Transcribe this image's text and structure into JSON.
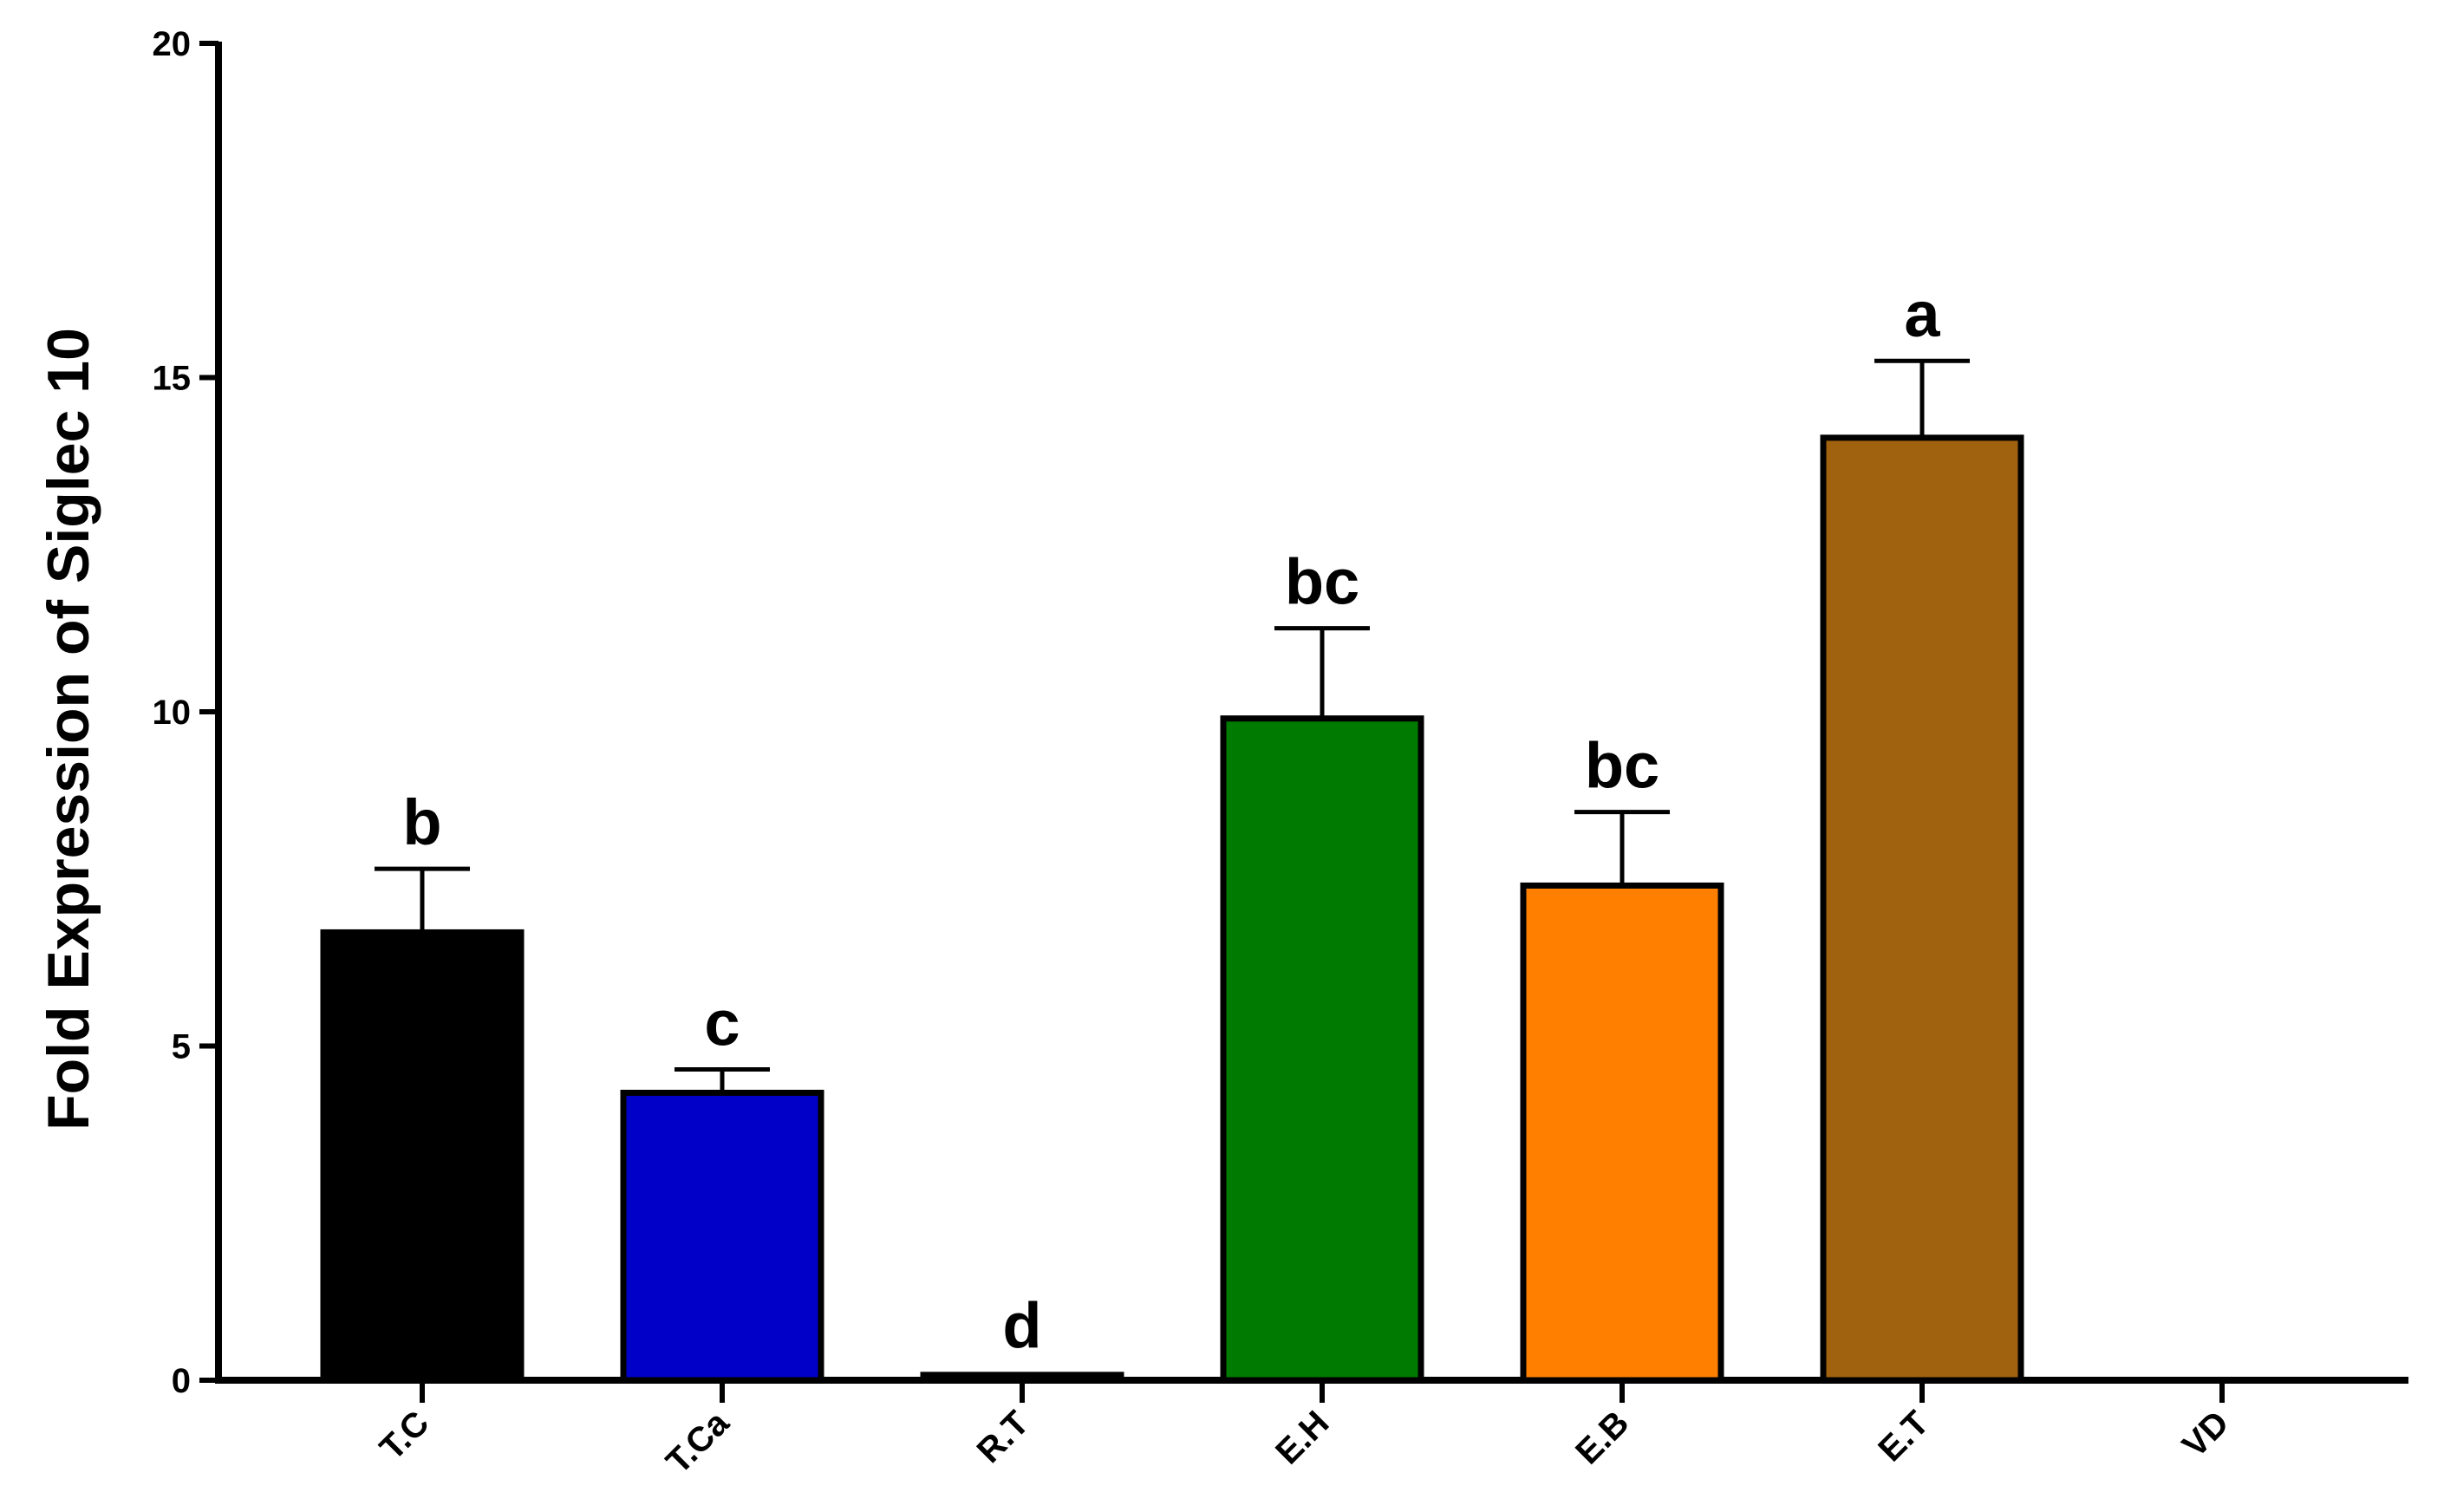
{
  "chart_data": {
    "type": "bar",
    "title": "",
    "xlabel": "",
    "ylabel": "Fold Expression of Siglec 10",
    "ylim": [
      0,
      20
    ],
    "yticks": [
      "0",
      "5",
      "10",
      "15",
      "20"
    ],
    "categories": [
      "T.C",
      "T.Ca",
      "R.T",
      "E.H",
      "E.B",
      "E.T",
      "VD"
    ],
    "values": [
      6.7,
      4.3,
      0.08,
      9.9,
      7.4,
      14.1,
      0
    ],
    "errors": [
      0.95,
      0.35,
      0.04,
      1.35,
      1.1,
      1.15,
      0
    ],
    "significance_letters": [
      "b",
      "c",
      "d",
      "bc",
      "bc",
      "a",
      ""
    ],
    "colors": [
      "#000000",
      "#0000c8",
      "#000000",
      "#007a00",
      "#ff8000",
      "#a0620f",
      "#ffffff"
    ],
    "grid": false,
    "legend": "none"
  }
}
